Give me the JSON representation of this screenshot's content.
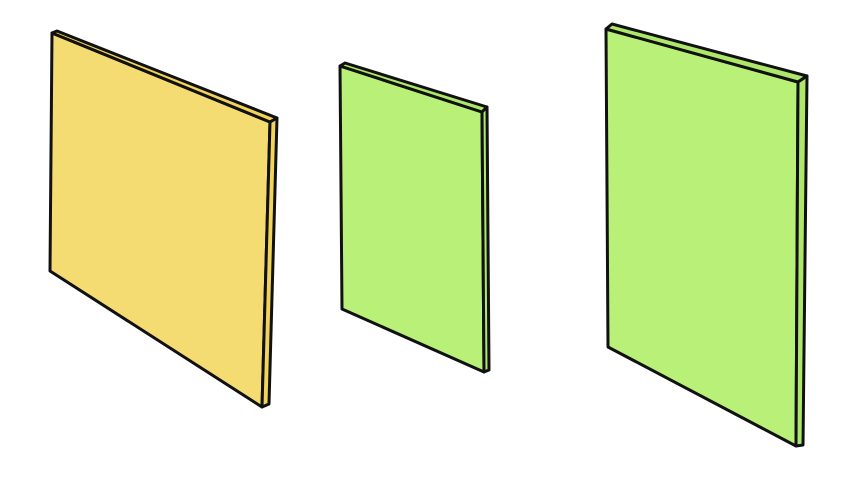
{
  "panels": [
    {
      "id": "panel-1",
      "fill": "#F5DC72",
      "edge": "#F2D45A"
    },
    {
      "id": "panel-2",
      "fill": "#B9F178",
      "edge": "#AEE86A"
    },
    {
      "id": "panel-3",
      "fill": "#B9F178",
      "edge": "#AEE86A"
    }
  ],
  "stroke_color": "#111111",
  "background": "#FFFFFF"
}
